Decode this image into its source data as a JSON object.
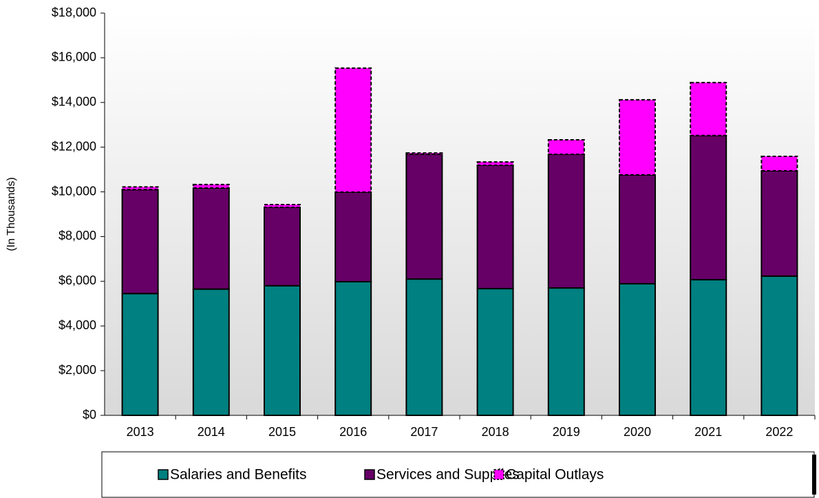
{
  "chart_data": {
    "type": "stacked_bar",
    "y_label": "(In Thousands)",
    "categories": [
      "2013",
      "2014",
      "2015",
      "2016",
      "2017",
      "2018",
      "2019",
      "2020",
      "2021",
      "2022"
    ],
    "series": [
      {
        "name": "Salaries and Benefits",
        "color": "#008080",
        "values": [
          5450,
          5650,
          5800,
          5980,
          6100,
          5670,
          5700,
          5890,
          6070,
          6230
        ]
      },
      {
        "name": "Services and Supplies",
        "color": "#660066",
        "values": [
          4650,
          4520,
          3510,
          4010,
          5580,
          5520,
          5980,
          4870,
          6450,
          4710
        ]
      },
      {
        "name": "Capital Outlays",
        "color": "#ff00ff",
        "dashed": true,
        "values": [
          120,
          160,
          120,
          5550,
          60,
          150,
          650,
          3360,
          2370,
          650
        ]
      }
    ],
    "ylim": [
      0,
      18000
    ],
    "yticks": [
      {
        "value": 0,
        "label": "$0"
      },
      {
        "value": 2000,
        "label": "$2,000"
      },
      {
        "value": 4000,
        "label": "$4,000"
      },
      {
        "value": 6000,
        "label": "$6,000"
      },
      {
        "value": 8000,
        "label": "$8,000"
      },
      {
        "value": 10000,
        "label": "$10,000"
      },
      {
        "value": 12000,
        "label": "$12,000"
      },
      {
        "value": 14000,
        "label": "$14,000"
      },
      {
        "value": 16000,
        "label": "$16,000"
      },
      {
        "value": 18000,
        "label": "$18,000"
      }
    ]
  }
}
